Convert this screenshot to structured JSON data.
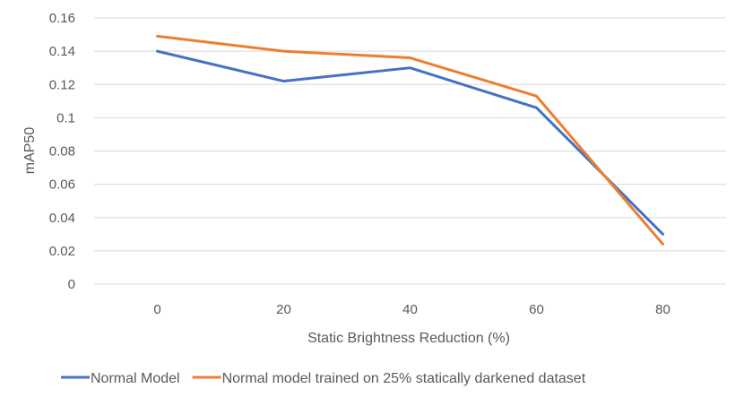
{
  "chart_data": {
    "type": "line",
    "title": "",
    "xlabel": "Static Brightness Reduction (%)",
    "ylabel": "mAP50",
    "categories": [
      "0",
      "20",
      "40",
      "60",
      "80"
    ],
    "ylim": [
      0,
      0.16
    ],
    "yticks": [
      "0",
      "0.02",
      "0.04",
      "0.06",
      "0.08",
      "0.1",
      "0.12",
      "0.14",
      "0.16"
    ],
    "grid": true,
    "legend_position": "bottom",
    "series": [
      {
        "name": "Normal Model",
        "color": "#4472C4",
        "values": [
          0.14,
          0.122,
          0.13,
          0.106,
          0.03
        ]
      },
      {
        "name": "Normal model trained on 25% statically darkened dataset",
        "color": "#ED7D31",
        "values": [
          0.149,
          0.14,
          0.136,
          0.113,
          0.024
        ]
      }
    ]
  }
}
